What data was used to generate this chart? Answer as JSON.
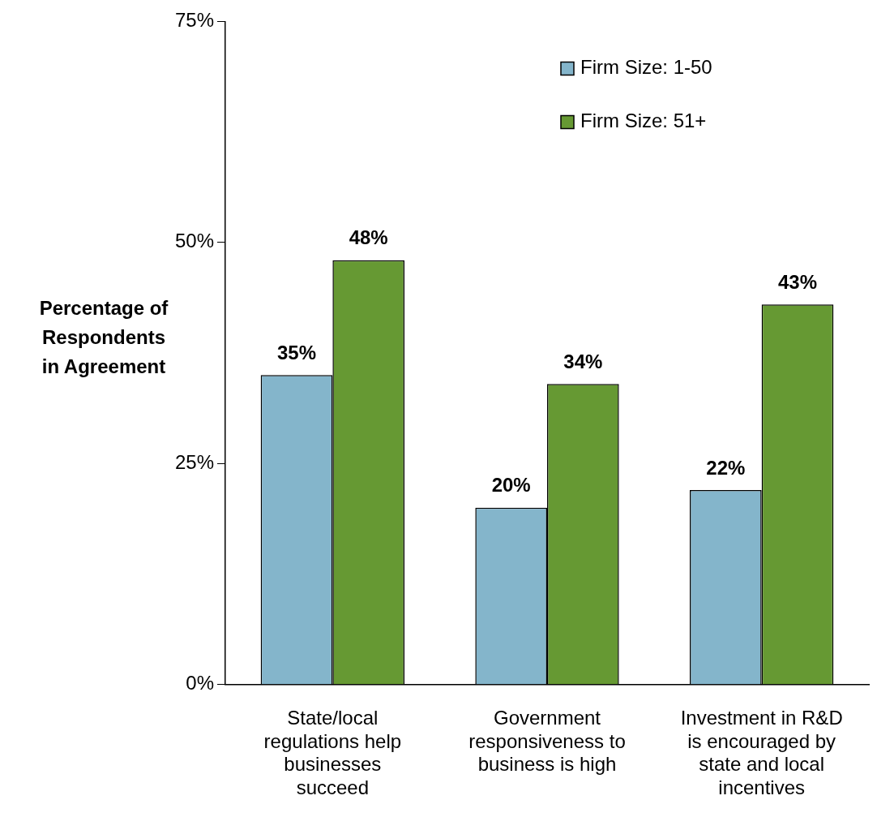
{
  "chart_data": {
    "type": "bar",
    "ylabel": "Percentage of Respondents in Agreement",
    "categories": [
      "State/local regulations help businesses succeed",
      "Government responsiveness to business is high",
      "Investment in R&D is encouraged by state and local incentives"
    ],
    "series": [
      {
        "name": "Firm Size: 1-50",
        "color": "#84b5cb",
        "values": [
          35,
          20,
          22
        ],
        "value_labels": [
          "35%",
          "20%",
          "22%"
        ]
      },
      {
        "name": "Firm Size: 51+",
        "color": "#669933",
        "values": [
          48,
          34,
          43
        ],
        "value_labels": [
          "48%",
          "34%",
          "43%"
        ]
      }
    ],
    "ylim": [
      0,
      75
    ],
    "yticks": [
      {
        "value": 0,
        "label": "0%"
      },
      {
        "value": 25,
        "label": "25%"
      },
      {
        "value": 50,
        "label": "50%"
      },
      {
        "value": 75,
        "label": "75%"
      }
    ],
    "grid": false,
    "legend": "top right"
  }
}
